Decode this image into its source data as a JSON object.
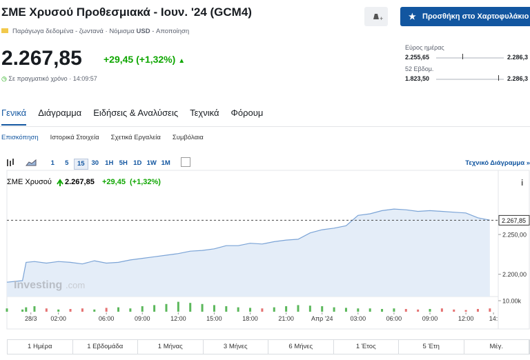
{
  "header": {
    "title": "ΣΜΕ Χρυσού Προθεσμιακά - Ιουν. '24 (GCM4)",
    "add_button": "Προσθήκη στο Χαρτοφυλάκιο",
    "data_type": "Παράγωγα δεδομένα - ζωντανά",
    "currency_label": "Νόμισμα",
    "currency": "USD",
    "disclaimer": "Αποποίηση"
  },
  "quote": {
    "price": "2.267,85",
    "change": "+29,45 (+1,32%)",
    "realtime": "Σε πραγματικό χρόνο",
    "time": "14:09:57"
  },
  "ranges": [
    {
      "label": "Εύρος ημέρας",
      "low": "2.255,65",
      "high": "2.286,3"
    },
    {
      "label": "52 Εβδομ.",
      "low": "1.823,50",
      "high": "2.286,3"
    }
  ],
  "tabs": [
    "Γενικά",
    "Διάγραμμα",
    "Ειδήσεις & Αναλύσεις",
    "Τεχνικά",
    "Φόρουμ"
  ],
  "subtabs": [
    "Επισκόπηση",
    "Ιστορικά Στοιχεία",
    "Σχετικά Εργαλεία",
    "Συμβόλαια"
  ],
  "toolbar": {
    "intervals": [
      "1",
      "5",
      "15",
      "30",
      "1H",
      "5H",
      "1D",
      "1W",
      "1M"
    ],
    "technical_link": "Τεχνικό Διάγραμμα »"
  },
  "chart": {
    "type": "area",
    "name": "ΣΜΕ Χρυσού",
    "price": "2.267,85",
    "change": "+29,45",
    "change_pct": "(+1,32%)",
    "watermark": "Investing",
    "watermark_suffix": ".com",
    "color": "#7aa3d6",
    "fill": "#e4edf8",
    "x": [
      -2.3,
      -1,
      -0.7,
      0,
      1,
      2,
      3,
      4,
      5,
      6,
      7,
      8,
      9,
      10,
      11,
      12,
      13,
      14,
      15,
      16,
      17,
      18,
      19,
      20,
      21,
      22,
      23,
      24,
      25,
      26,
      27,
      28,
      29,
      30,
      31,
      32,
      33,
      34,
      35,
      36,
      37,
      38
    ],
    "values": [
      2190,
      2192,
      2215,
      2216,
      2214,
      2216,
      2215,
      2213,
      2217,
      2214,
      2215,
      2218,
      2220,
      2222,
      2224,
      2226,
      2229,
      2230,
      2232,
      2236,
      2236,
      2239,
      2238,
      2241,
      2243,
      2244,
      2252,
      2256,
      2258,
      2261,
      2274,
      2276,
      2280,
      2282,
      2281,
      2279,
      2280,
      2279,
      2278,
      2277,
      2271,
      2268
    ],
    "xlim": [
      -2.3,
      38.7
    ],
    "xticks": [
      {
        "value": -0.3,
        "label": "28/3"
      },
      {
        "value": 2,
        "label": "02:00"
      },
      {
        "value": 6,
        "label": "06:00"
      },
      {
        "value": 9,
        "label": "09:00"
      },
      {
        "value": 12,
        "label": "12:00"
      },
      {
        "value": 15,
        "label": "15:00"
      },
      {
        "value": 18,
        "label": "18:00"
      },
      {
        "value": 21,
        "label": "21:00"
      },
      {
        "value": 24,
        "label": "Απρ '24"
      },
      {
        "value": 27,
        "label": "03:00"
      },
      {
        "value": 30,
        "label": "06:00"
      },
      {
        "value": 33,
        "label": "09:00"
      },
      {
        "value": 36,
        "label": "12:00"
      },
      {
        "value": 38.3,
        "label": "14:"
      }
    ],
    "ylim": [
      2172,
      2302
    ],
    "yticks": [
      {
        "value": 2250,
        "label": "2.250,00"
      },
      {
        "value": 2200,
        "label": "2.200,00"
      }
    ],
    "last": {
      "value": 2267.85,
      "label": "2.267,85"
    },
    "volume": [
      3000,
      2000,
      4000,
      5000,
      3000,
      2000,
      2500,
      3000,
      2000,
      3500,
      4000,
      3000,
      5000,
      6000,
      7000,
      9000,
      8000,
      7000,
      6000,
      5000,
      4000,
      3500,
      3000,
      4000,
      5000,
      6000,
      5500,
      5000,
      4000,
      3500,
      3000,
      3000,
      2500,
      3000,
      2500,
      2000,
      2500,
      3000,
      2000,
      1500,
      2500,
      3000
    ],
    "volume_lim": [
      0,
      10000
    ],
    "volume_ticks": [
      {
        "value": 10000,
        "label": "10.00k"
      }
    ],
    "up_color": "#5cb85c",
    "down_color": "#e57373"
  },
  "periods": [
    "1 Ημέρα",
    "1 Εβδομάδα",
    "1 Μήνας",
    "3 Μήνες",
    "6 Μήνες",
    "1 Έτος",
    "5 Έτη",
    "Μέγ."
  ]
}
